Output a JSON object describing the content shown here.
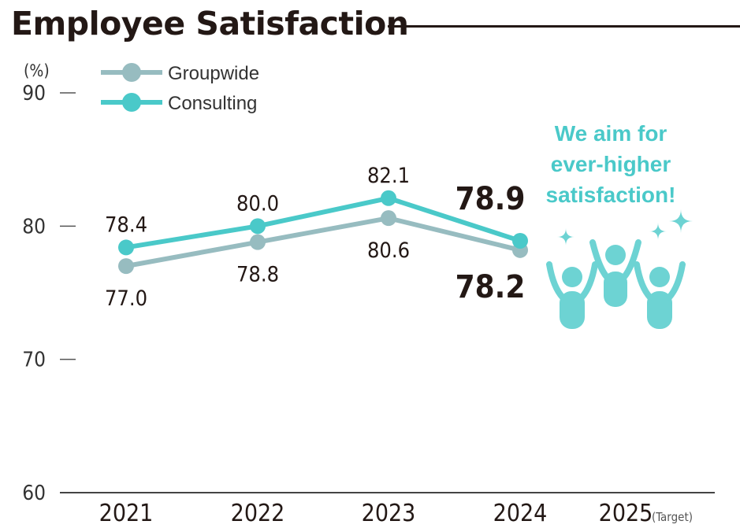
{
  "chart_data": {
    "type": "line",
    "title": "Employee Satisfaction",
    "ylabel": "(%)",
    "xlabel": "",
    "ylim": [
      60,
      90
    ],
    "yticks": [
      60,
      70,
      80,
      90
    ],
    "categories": [
      "2021",
      "2022",
      "2023",
      "2024",
      "2025"
    ],
    "category_note": {
      "2025": "(Target)"
    },
    "grid": false,
    "legend_position": "top-left",
    "series": [
      {
        "name": "Groupwide",
        "color": "#97bcc0",
        "values": [
          77.0,
          78.8,
          80.6,
          78.2,
          null
        ],
        "labels": [
          "77.0",
          "78.8",
          "80.6",
          "78.2"
        ],
        "label_position": "below"
      },
      {
        "name": "Consulting",
        "color": "#4ac9c9",
        "values": [
          78.4,
          80.0,
          82.1,
          78.9,
          null
        ],
        "labels": [
          "78.4",
          "80.0",
          "82.1",
          "78.9"
        ],
        "label_position": "above"
      }
    ],
    "annotation": {
      "lines": [
        "We aim for",
        "ever-higher",
        "satisfaction!"
      ],
      "color": "#4ac9c9",
      "icon": "cheering-people-icon"
    }
  }
}
